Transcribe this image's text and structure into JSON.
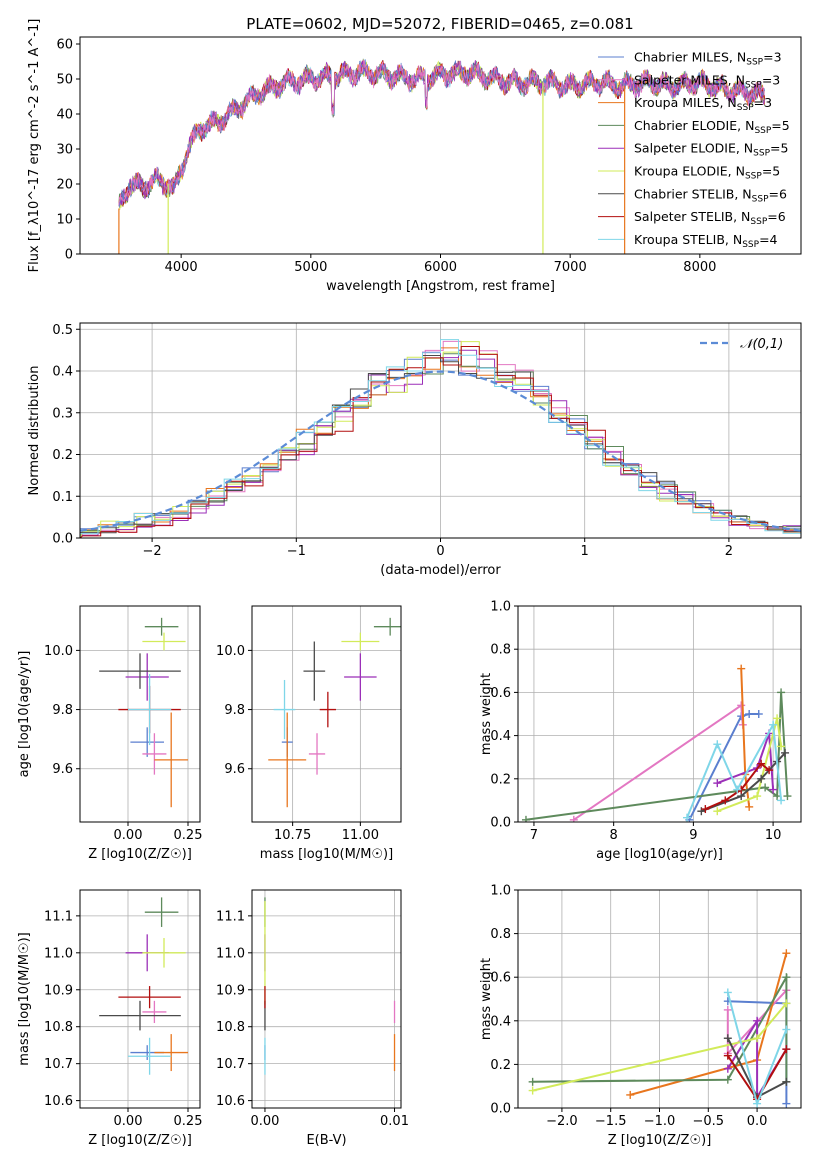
{
  "figure": {
    "title": "PLATE=0602, MJD=52072, FIBERID=0465, z=0.081"
  },
  "series_colors": [
    "#5b7fcf",
    "#e377c2",
    "#e8761e",
    "#5e8a5c",
    "#9b2fb8",
    "#d2eb5a",
    "#4a4a4a",
    "#b20f0f",
    "#7fd6e8"
  ],
  "chart_data": [
    {
      "id": "spectrum",
      "type": "line",
      "xlabel": "wavelength [Angstrom, rest frame]",
      "ylabel": "Flux [f_λ10^-17 erg cm^-2 s^-1 A^-1]",
      "xlim": [
        3220,
        8780
      ],
      "ylim": [
        0,
        62
      ],
      "xticks": [
        4000,
        5000,
        6000,
        7000,
        8000
      ],
      "yticks": [
        0,
        10,
        20,
        30,
        40,
        50,
        60
      ],
      "grid": false,
      "legend": "top-right",
      "legend_entries": [
        "Chabrier MILES, N_SSP=3",
        "Salpeter MILES, N_SSP=3",
        "Kroupa MILES, N_SSP=3",
        "Chabrier ELODIE, N_SSP=5",
        "Salpeter ELODIE, N_SSP=5",
        "Kroupa ELODIE, N_SSP=5",
        "Chabrier STELIB, N_SSP=6",
        "Salpeter STELIB, N_SSP=6",
        "Kroupa STELIB, N_SSP=4"
      ],
      "envelope": {
        "x": [
          3520,
          3600,
          3700,
          3800,
          3900,
          3950,
          4050,
          4150,
          4300,
          4450,
          4600,
          4800,
          5000,
          5200,
          5400,
          5600,
          5800,
          6000,
          6200,
          6400,
          6600,
          6800,
          7000,
          7200,
          7400,
          7600,
          7800,
          8000,
          8200,
          8400,
          8500
        ],
        "y": [
          13,
          20,
          19,
          21,
          20,
          18,
          30,
          36,
          38,
          42,
          46,
          49,
          50,
          51,
          52,
          51,
          50,
          51,
          52,
          50,
          49,
          49,
          48,
          49,
          48,
          49,
          48,
          49,
          47,
          46,
          45
        ]
      },
      "vertical_drops": [
        {
          "x": 3520,
          "series": 2
        },
        {
          "x": 3900,
          "series": 5
        },
        {
          "x": 6790,
          "series": 5
        },
        {
          "x": 7420,
          "series": 2
        }
      ]
    },
    {
      "id": "residuals",
      "type": "histogram",
      "xlabel": "(data-model)/error",
      "ylabel": "Normed distribution",
      "xlim": [
        -2.5,
        2.5
      ],
      "ylim": [
        0,
        0.515
      ],
      "xticks": [
        -2,
        -1,
        0,
        1,
        2
      ],
      "yticks": [
        0.0,
        0.1,
        0.2,
        0.3,
        0.4,
        0.5
      ],
      "grid": true,
      "legend": "top-right",
      "reference_curve": {
        "label": "𝒩(0,1)",
        "mean": 0,
        "sigma": 1
      },
      "bins": 40,
      "sample_heights": [
        [
          0.02,
          0.02,
          0.03,
          0.04,
          0.05,
          0.06,
          0.08,
          0.1,
          0.13,
          0.15,
          0.17,
          0.2,
          0.23,
          0.27,
          0.31,
          0.34,
          0.37,
          0.39,
          0.4,
          0.41,
          0.41,
          0.42,
          0.4,
          0.39,
          0.37,
          0.34,
          0.3,
          0.27,
          0.23,
          0.2,
          0.17,
          0.14,
          0.12,
          0.1,
          0.08,
          0.06,
          0.05,
          0.04,
          0.03,
          0.02
        ],
        [
          0.01,
          0.02,
          0.02,
          0.03,
          0.04,
          0.05,
          0.07,
          0.09,
          0.12,
          0.14,
          0.17,
          0.19,
          0.22,
          0.25,
          0.28,
          0.32,
          0.36,
          0.38,
          0.4,
          0.42,
          0.44,
          0.43,
          0.42,
          0.4,
          0.38,
          0.35,
          0.31,
          0.27,
          0.24,
          0.2,
          0.16,
          0.13,
          0.11,
          0.09,
          0.07,
          0.05,
          0.04,
          0.03,
          0.02,
          0.02
        ],
        [
          0.02,
          0.03,
          0.03,
          0.05,
          0.05,
          0.07,
          0.08,
          0.11,
          0.13,
          0.16,
          0.18,
          0.21,
          0.24,
          0.27,
          0.3,
          0.33,
          0.36,
          0.38,
          0.41,
          0.43,
          0.45,
          0.44,
          0.41,
          0.39,
          0.37,
          0.33,
          0.29,
          0.26,
          0.22,
          0.19,
          0.16,
          0.13,
          0.1,
          0.08,
          0.07,
          0.05,
          0.04,
          0.03,
          0.02,
          0.02
        ]
      ]
    },
    {
      "id": "age-vs-Z",
      "type": "scatter",
      "xlabel": "Z [log10(Z/Z☉)]",
      "ylabel": "age  [log10(age/yr)]",
      "xlim": [
        -0.2,
        0.3
      ],
      "ylim": [
        9.42,
        10.15
      ],
      "xticks": [
        0.0,
        0.25
      ],
      "xticklabels": [
        "0.00",
        "0.25"
      ],
      "yticks": [
        9.6,
        9.8,
        10.0
      ],
      "grid": true,
      "points": [
        {
          "x": 0.08,
          "y": 9.69,
          "xerr": 0.07,
          "yerr": 0.05,
          "series": 0
        },
        {
          "x": 0.11,
          "y": 9.65,
          "xerr": 0.05,
          "yerr": 0.07,
          "series": 1
        },
        {
          "x": 0.18,
          "y": 9.63,
          "xerr": 0.07,
          "yerr": 0.16,
          "series": 2
        },
        {
          "x": 0.14,
          "y": 10.08,
          "xerr": 0.07,
          "yerr": 0.03,
          "series": 3
        },
        {
          "x": 0.08,
          "y": 9.91,
          "xerr": 0.09,
          "yerr": 0.08,
          "series": 4
        },
        {
          "x": 0.15,
          "y": 10.03,
          "xerr": 0.09,
          "yerr": 0.03,
          "series": 5
        },
        {
          "x": 0.05,
          "y": 9.93,
          "xerr": 0.17,
          "yerr": 0.06,
          "series": 6
        },
        {
          "x": 0.09,
          "y": 9.8,
          "xerr": 0.13,
          "yerr": 0.08,
          "series": 7
        },
        {
          "x": 0.09,
          "y": 9.8,
          "xerr": 0.09,
          "yerr": 0.12,
          "series": 8
        }
      ]
    },
    {
      "id": "age-vs-mass",
      "type": "scatter",
      "xlabel": "mass [log10(M/M☉)]",
      "ylabel": "",
      "xlim": [
        10.6,
        11.15
      ],
      "ylim": [
        9.42,
        10.15
      ],
      "xticks": [
        10.75,
        11.0
      ],
      "xticklabels": [
        "10.75",
        "11.00"
      ],
      "yticks": [
        9.6,
        9.8,
        10.0
      ],
      "grid": true,
      "points": [
        {
          "x": 10.73,
          "y": 9.69,
          "xerr": 0.02,
          "yerr": 0.05,
          "series": 0
        },
        {
          "x": 10.84,
          "y": 9.65,
          "xerr": 0.03,
          "yerr": 0.07,
          "series": 1
        },
        {
          "x": 10.73,
          "y": 9.63,
          "xerr": 0.07,
          "yerr": 0.16,
          "series": 2
        },
        {
          "x": 11.11,
          "y": 10.08,
          "xerr": 0.06,
          "yerr": 0.03,
          "series": 3
        },
        {
          "x": 11.0,
          "y": 9.91,
          "xerr": 0.06,
          "yerr": 0.08,
          "series": 4
        },
        {
          "x": 11.0,
          "y": 10.03,
          "xerr": 0.07,
          "yerr": 0.03,
          "series": 5
        },
        {
          "x": 10.83,
          "y": 9.93,
          "xerr": 0.04,
          "yerr": 0.1,
          "series": 6
        },
        {
          "x": 10.88,
          "y": 9.8,
          "xerr": 0.03,
          "yerr": 0.06,
          "series": 7
        },
        {
          "x": 10.72,
          "y": 9.8,
          "xerr": 0.04,
          "yerr": 0.1,
          "series": 8
        }
      ]
    },
    {
      "id": "weight-vs-age",
      "type": "line",
      "xlabel": "age  [log10(age/yr)]",
      "ylabel": "mass weight",
      "xlim": [
        6.8,
        10.35
      ],
      "ylim": [
        0,
        1.0
      ],
      "xticks": [
        7,
        8,
        9,
        10
      ],
      "yticks": [
        0.0,
        0.2,
        0.4,
        0.6,
        0.8,
        1.0
      ],
      "grid": true,
      "lines": [
        {
          "series": 0,
          "x": [
            8.95,
            9.6,
            9.7,
            9.82
          ],
          "y": [
            0.01,
            0.49,
            0.5,
            0.5
          ]
        },
        {
          "series": 1,
          "x": [
            7.5,
            9.6,
            9.62
          ],
          "y": [
            0.01,
            0.54,
            0.45
          ]
        },
        {
          "series": 2,
          "x": [
            9.6,
            9.65,
            9.7
          ],
          "y": [
            0.71,
            0.22,
            0.07
          ]
        },
        {
          "series": 3,
          "x": [
            6.9,
            9.9,
            10.05,
            10.1,
            10.18
          ],
          "y": [
            0.01,
            0.16,
            0.12,
            0.6,
            0.12
          ]
        },
        {
          "series": 4,
          "x": [
            9.3,
            9.8,
            9.95,
            10.0
          ],
          "y": [
            0.18,
            0.25,
            0.41,
            0.15
          ]
        },
        {
          "series": 5,
          "x": [
            9.3,
            9.8,
            10.05,
            10.1
          ],
          "y": [
            0.05,
            0.12,
            0.48,
            0.35
          ]
        },
        {
          "series": 6,
          "x": [
            9.1,
            9.6,
            9.85,
            10.05,
            10.15
          ],
          "y": [
            0.05,
            0.12,
            0.2,
            0.28,
            0.32
          ]
        },
        {
          "series": 7,
          "x": [
            9.15,
            9.4,
            9.6,
            9.85,
            9.95
          ],
          "y": [
            0.06,
            0.1,
            0.15,
            0.27,
            0.24
          ]
        },
        {
          "series": 8,
          "x": [
            8.92,
            9.3,
            9.55,
            10.0,
            10.1
          ],
          "y": [
            0.02,
            0.36,
            0.15,
            0.45,
            0.1
          ]
        }
      ]
    },
    {
      "id": "mass-vs-Z",
      "type": "scatter",
      "xlabel": "Z [log10(Z/Z☉)]",
      "ylabel": "mass [log10(M/M☉)]",
      "xlim": [
        -0.2,
        0.3
      ],
      "ylim": [
        10.58,
        11.17
      ],
      "xticks": [
        0.0,
        0.25
      ],
      "xticklabels": [
        "0.00",
        "0.25"
      ],
      "yticks": [
        10.6,
        10.7,
        10.8,
        10.9,
        11.0,
        11.1
      ],
      "grid": true,
      "points": [
        {
          "x": 0.08,
          "y": 10.73,
          "xerr": 0.07,
          "yerr": 0.02,
          "series": 0
        },
        {
          "x": 0.11,
          "y": 10.84,
          "xerr": 0.05,
          "yerr": 0.03,
          "series": 1
        },
        {
          "x": 0.18,
          "y": 10.73,
          "xerr": 0.07,
          "yerr": 0.05,
          "series": 2
        },
        {
          "x": 0.14,
          "y": 11.11,
          "xerr": 0.07,
          "yerr": 0.04,
          "series": 3
        },
        {
          "x": 0.08,
          "y": 11.0,
          "xerr": 0.09,
          "yerr": 0.05,
          "series": 4
        },
        {
          "x": 0.15,
          "y": 11.0,
          "xerr": 0.09,
          "yerr": 0.04,
          "series": 5
        },
        {
          "x": 0.05,
          "y": 10.83,
          "xerr": 0.17,
          "yerr": 0.04,
          "series": 6
        },
        {
          "x": 0.09,
          "y": 10.88,
          "xerr": 0.13,
          "yerr": 0.03,
          "series": 7
        },
        {
          "x": 0.09,
          "y": 10.72,
          "xerr": 0.09,
          "yerr": 0.05,
          "series": 8
        }
      ]
    },
    {
      "id": "mass-vs-EBV",
      "type": "scatter",
      "xlabel": "E(B-V)",
      "ylabel": "",
      "xlim": [
        -0.001,
        0.0105
      ],
      "ylim": [
        10.58,
        11.17
      ],
      "xticks": [
        0.0,
        0.01
      ],
      "xticklabels": [
        "0.00",
        "0.01"
      ],
      "yticks": [
        10.6,
        10.7,
        10.8,
        10.9,
        11.0,
        11.1
      ],
      "grid": true,
      "points": [
        {
          "x": 0.0,
          "y": 10.73,
          "xerr": 0,
          "yerr": 0.02,
          "series": 0
        },
        {
          "x": 0.01,
          "y": 10.84,
          "xerr": 0,
          "yerr": 0.03,
          "series": 1
        },
        {
          "x": 0.01,
          "y": 10.73,
          "xerr": 0,
          "yerr": 0.05,
          "series": 2
        },
        {
          "x": 0.0,
          "y": 11.11,
          "xerr": 0,
          "yerr": 0.04,
          "series": 3
        },
        {
          "x": 0.0,
          "y": 11.0,
          "xerr": 0,
          "yerr": 0.05,
          "series": 4
        },
        {
          "x": 0.0,
          "y": 11.0,
          "xerr": 0,
          "yerr": 0.14,
          "series": 5
        },
        {
          "x": 0.0,
          "y": 10.83,
          "xerr": 0,
          "yerr": 0.04,
          "series": 6
        },
        {
          "x": 0.0,
          "y": 10.88,
          "xerr": 0,
          "yerr": 0.03,
          "series": 7
        },
        {
          "x": 0.0,
          "y": 10.72,
          "xerr": 0,
          "yerr": 0.05,
          "series": 8
        }
      ]
    },
    {
      "id": "weight-vs-Z",
      "type": "line",
      "xlabel": "Z [log10(Z/Z☉)]",
      "ylabel": "mass weight",
      "xlim": [
        -2.45,
        0.45
      ],
      "ylim": [
        0,
        1.0
      ],
      "xticks": [
        -2.0,
        -1.5,
        -1.0,
        -0.5,
        0.0
      ],
      "xticklabels": [
        "−2.0",
        "−1.5",
        "−1.0",
        "−0.5",
        "0.0"
      ],
      "yticks": [
        0.0,
        0.2,
        0.4,
        0.6,
        0.8,
        1.0
      ],
      "grid": true,
      "lines": [
        {
          "series": 0,
          "x": [
            -0.3,
            0.3,
            0.3
          ],
          "y": [
            0.49,
            0.48,
            0.02
          ]
        },
        {
          "series": 1,
          "x": [
            -0.3,
            -0.3,
            0.3
          ],
          "y": [
            0.45,
            0.25,
            0.54
          ]
        },
        {
          "series": 2,
          "x": [
            -1.3,
            0.0,
            0.3
          ],
          "y": [
            0.06,
            0.22,
            0.71
          ]
        },
        {
          "series": 3,
          "x": [
            -2.3,
            -0.3,
            0.3,
            0.3
          ],
          "y": [
            0.12,
            0.13,
            0.6,
            0.12
          ]
        },
        {
          "series": 4,
          "x": [
            -0.3,
            0.0,
            0.0,
            0.3
          ],
          "y": [
            0.18,
            0.4,
            0.05,
            0.27
          ]
        },
        {
          "series": 5,
          "x": [
            -2.3,
            0.0,
            0.3
          ],
          "y": [
            0.08,
            0.32,
            0.48
          ]
        },
        {
          "series": 6,
          "x": [
            -0.3,
            0.0,
            0.3
          ],
          "y": [
            0.32,
            0.05,
            0.12
          ]
        },
        {
          "series": 7,
          "x": [
            -0.3,
            0.0,
            0.3
          ],
          "y": [
            0.24,
            0.04,
            0.27
          ]
        },
        {
          "series": 8,
          "x": [
            -0.3,
            0.0,
            0.3
          ],
          "y": [
            0.53,
            0.02,
            0.36
          ]
        }
      ]
    }
  ]
}
